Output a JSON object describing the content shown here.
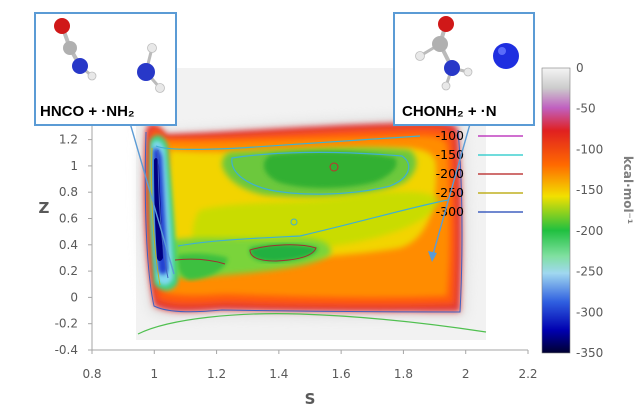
{
  "chart_data": {
    "type": "heatmap",
    "xlabel": "S",
    "ylabel": "Z",
    "xlim": [
      0.8,
      2.2
    ],
    "ylim": [
      -0.4,
      1.4
    ],
    "xticks": [
      "0.8",
      "1",
      "1.2",
      "1.4",
      "1.6",
      "1.8",
      "2",
      "2.2"
    ],
    "yticks": [
      "-0.4",
      "-0.2",
      "0",
      "0.2",
      "0.4",
      "0.6",
      "0.8",
      "1",
      "1.2"
    ],
    "colorbar": {
      "label": "kcal·mol⁻¹",
      "range": [
        -350,
        0
      ],
      "ticks": [
        "0",
        "-50",
        "-100",
        "-150",
        "-200",
        "-250",
        "-300",
        "-350"
      ]
    },
    "contour_legend": [
      {
        "value": "-100",
        "color": "#c040c0"
      },
      {
        "value": "-150",
        "color": "#40d0d0"
      },
      {
        "value": "-200",
        "color": "#c04040"
      },
      {
        "value": "-250",
        "color": "#c0b020"
      },
      {
        "value": "-300",
        "color": "#4060c0"
      }
    ],
    "annotations": [
      {
        "label": "HNCO + ·NH₂",
        "points_to": [
          1.02,
          0.2
        ]
      },
      {
        "label": "CHONH₂ + ·N",
        "points_to": [
          1.88,
          0.25
        ]
      }
    ]
  }
}
